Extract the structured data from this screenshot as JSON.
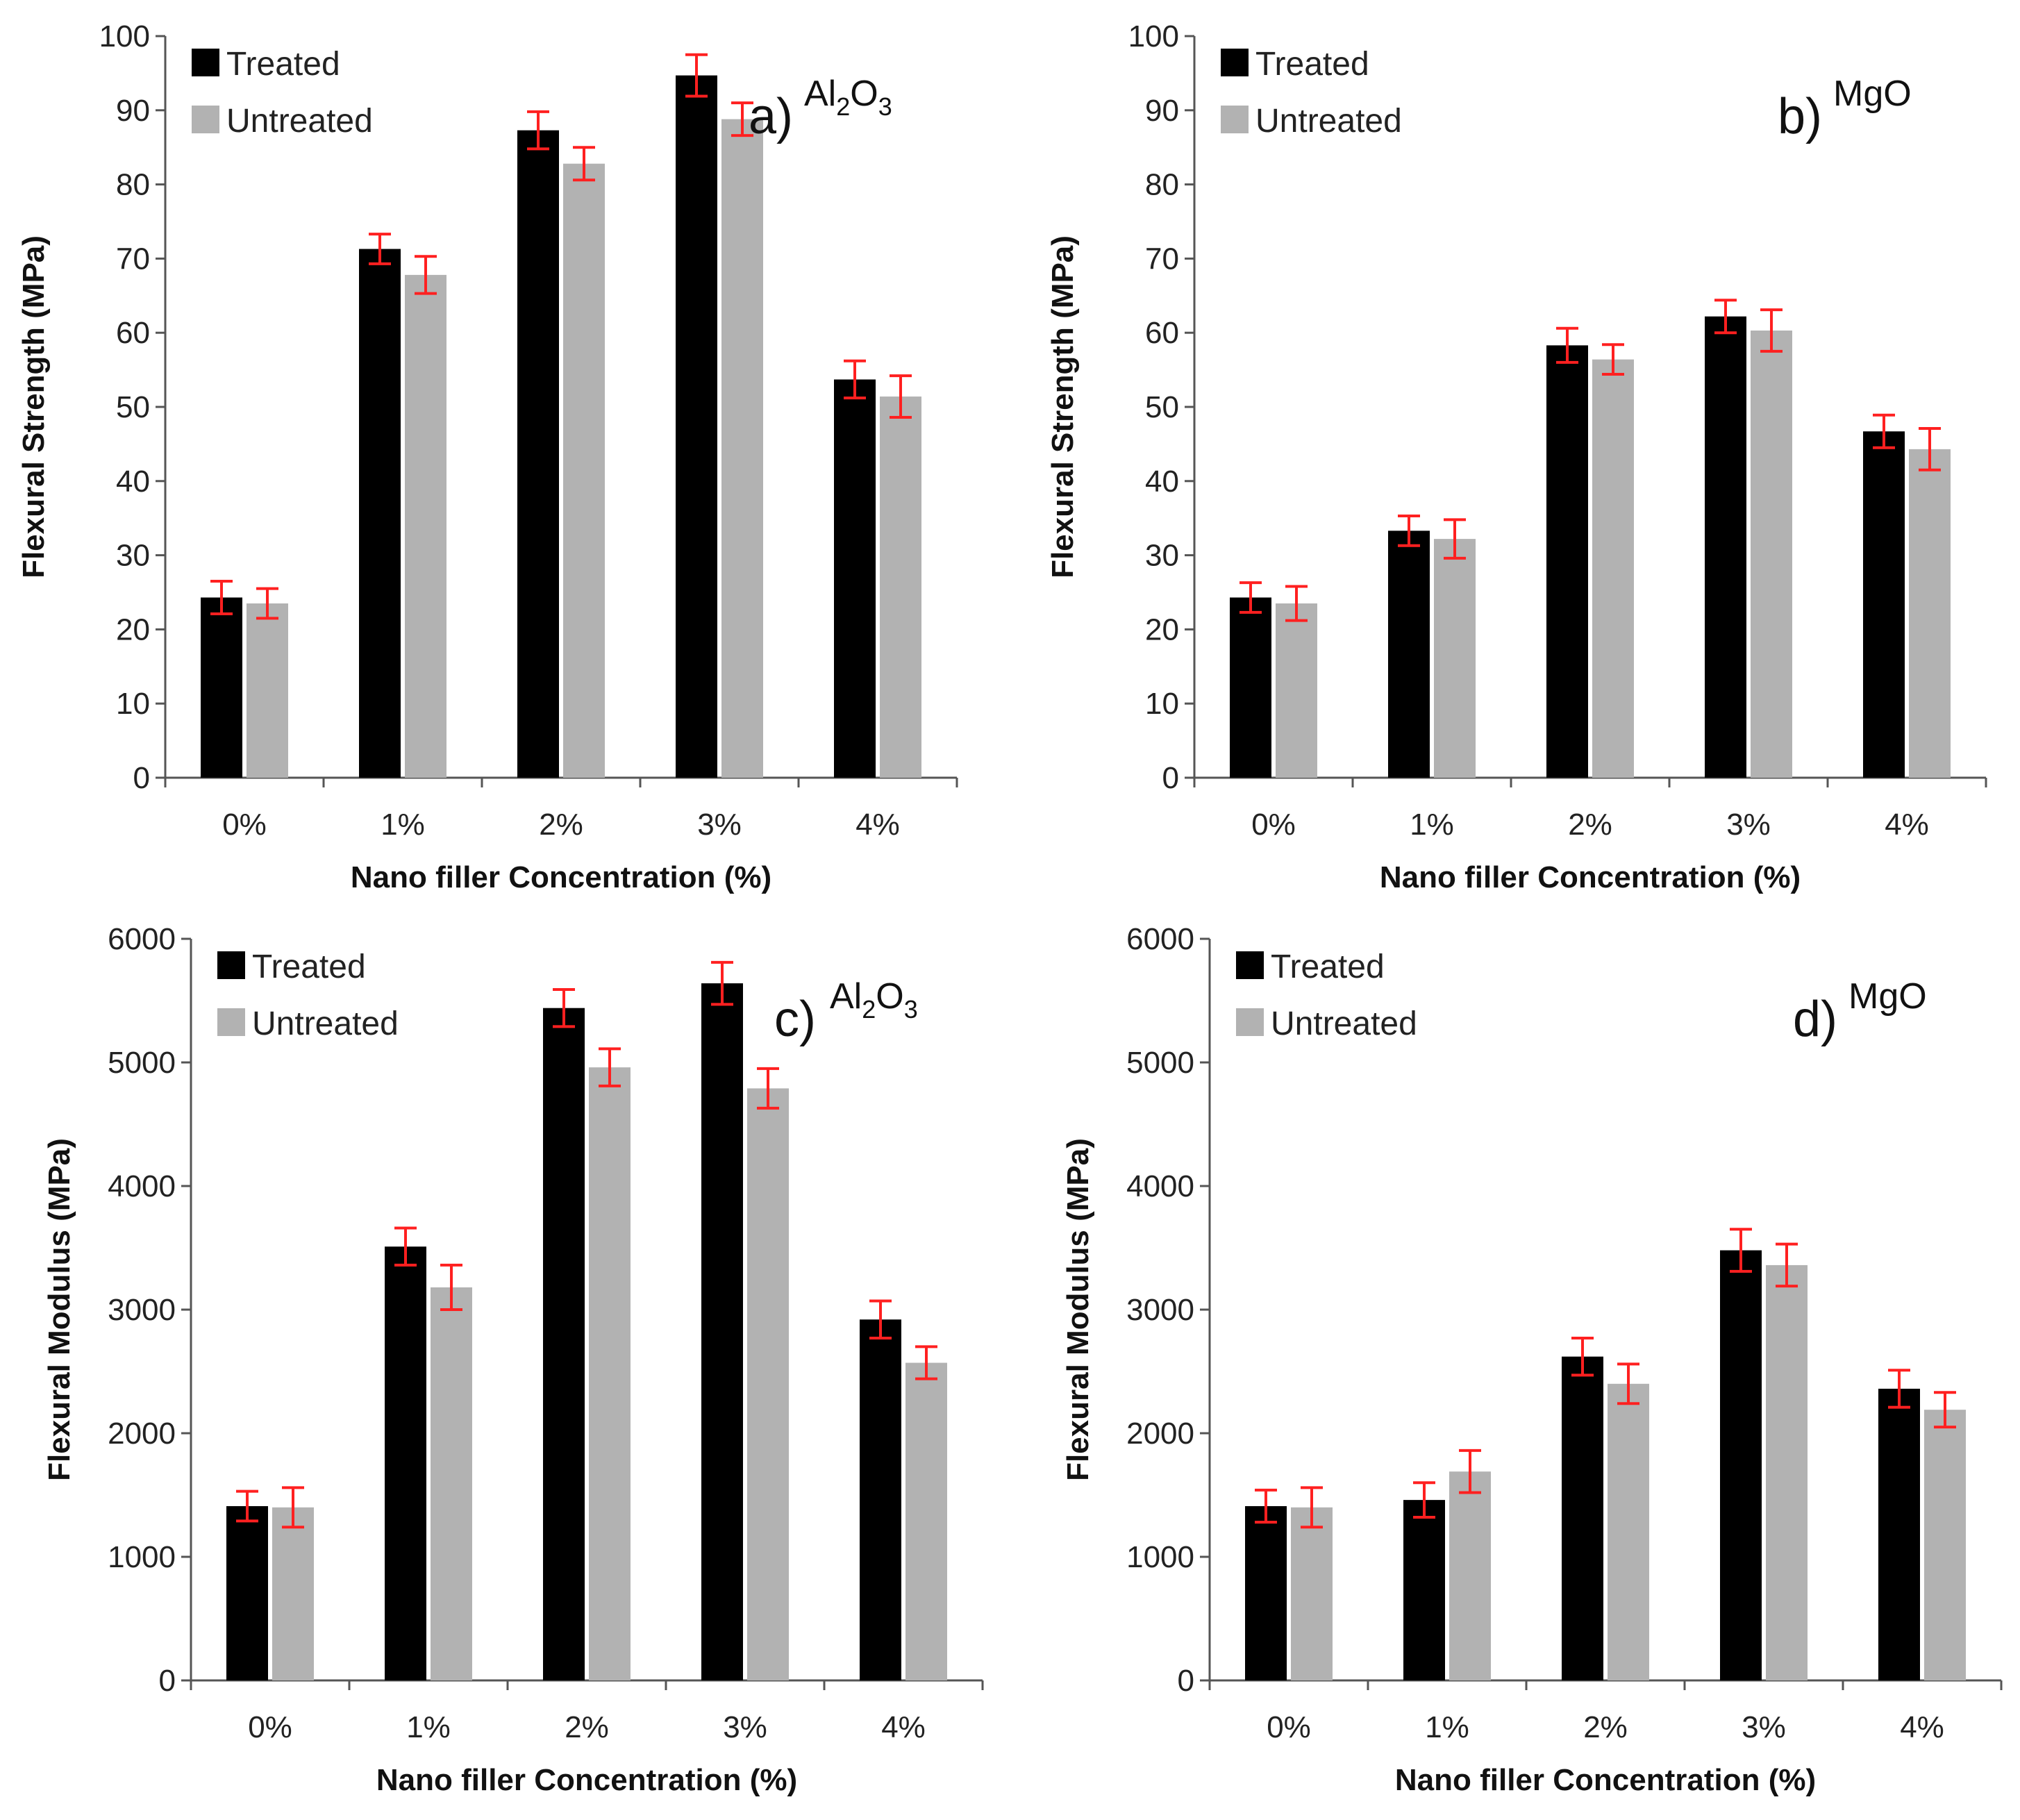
{
  "figure": {
    "colors": {
      "treated": "#000000",
      "untreated": "#b2b2b2",
      "error_bar": "#ff2020",
      "axis": "#555555"
    },
    "legend": {
      "treated": "Treated",
      "untreated": "Untreated"
    }
  },
  "chart_data": [
    {
      "type": "bar",
      "panel": "a",
      "panel_label": "a)",
      "material": {
        "base": "Al",
        "sub1": "2",
        "mid": "O",
        "sub2": "3"
      },
      "categories": [
        "0%",
        "1%",
        "2%",
        "3%",
        "4%"
      ],
      "series": [
        {
          "name": "Treated",
          "values": [
            24.3,
            71.3,
            87.3,
            94.7,
            53.7
          ],
          "errors": [
            2.2,
            2.0,
            2.5,
            2.8,
            2.5
          ]
        },
        {
          "name": "Untreated",
          "values": [
            23.5,
            67.8,
            82.8,
            88.8,
            51.4
          ],
          "errors": [
            2.0,
            2.5,
            2.2,
            2.2,
            2.8
          ]
        }
      ],
      "xlabel": "Nano filler Concentration (%)",
      "ylabel": "Flexural Strength (MPa)",
      "ylim": [
        0,
        100
      ],
      "yticks": [
        "0",
        "10",
        "20",
        "30",
        "40",
        "50",
        "60",
        "70",
        "80",
        "90",
        "100"
      ],
      "legend_position": "top-left"
    },
    {
      "type": "bar",
      "panel": "b",
      "panel_label": "b)",
      "material": {
        "base": "MgO",
        "sub1": "",
        "mid": "",
        "sub2": ""
      },
      "categories": [
        "0%",
        "1%",
        "2%",
        "3%",
        "4%"
      ],
      "series": [
        {
          "name": "Treated",
          "values": [
            24.3,
            33.3,
            58.3,
            62.2,
            46.7
          ],
          "errors": [
            2.0,
            2.0,
            2.3,
            2.2,
            2.2
          ]
        },
        {
          "name": "Untreated",
          "values": [
            23.5,
            32.2,
            56.4,
            60.3,
            44.3
          ],
          "errors": [
            2.3,
            2.6,
            2.0,
            2.8,
            2.8
          ]
        }
      ],
      "xlabel": "Nano filler Concentration (%)",
      "ylabel": "Flexural Strength (MPa)",
      "ylim": [
        0,
        100
      ],
      "yticks": [
        "0",
        "10",
        "20",
        "30",
        "40",
        "50",
        "60",
        "70",
        "80",
        "90",
        "100"
      ],
      "legend_position": "top-left"
    },
    {
      "type": "bar",
      "panel": "c",
      "panel_label": "c)",
      "material": {
        "base": "Al",
        "sub1": "2",
        "mid": "O",
        "sub2": "3"
      },
      "categories": [
        "0%",
        "1%",
        "2%",
        "3%",
        "4%"
      ],
      "series": [
        {
          "name": "Treated",
          "values": [
            1410,
            3510,
            5440,
            5640,
            2920
          ],
          "errors": [
            120,
            150,
            150,
            170,
            150
          ]
        },
        {
          "name": "Untreated",
          "values": [
            1400,
            3180,
            4960,
            4790,
            2570
          ],
          "errors": [
            160,
            180,
            150,
            160,
            130
          ]
        }
      ],
      "xlabel": "Nano filler Concentration (%)",
      "ylabel": "Flexural Modulus (MPa)",
      "ylim": [
        0,
        6000
      ],
      "yticks": [
        "0",
        "1000",
        "2000",
        "3000",
        "4000",
        "5000",
        "6000"
      ],
      "legend_position": "top-left"
    },
    {
      "type": "bar",
      "panel": "d",
      "panel_label": "d)",
      "material": {
        "base": "MgO",
        "sub1": "",
        "mid": "",
        "sub2": ""
      },
      "categories": [
        "0%",
        "1%",
        "2%",
        "3%",
        "4%"
      ],
      "series": [
        {
          "name": "Treated",
          "values": [
            1410,
            1460,
            2620,
            3480,
            2360
          ],
          "errors": [
            130,
            140,
            150,
            170,
            150
          ]
        },
        {
          "name": "Untreated",
          "values": [
            1400,
            1690,
            2400,
            3360,
            2190
          ],
          "errors": [
            160,
            170,
            160,
            170,
            140
          ]
        }
      ],
      "xlabel": "Nano filler Concentration (%)",
      "ylabel": "Flexural Modulus (MPa)",
      "ylim": [
        0,
        6000
      ],
      "yticks": [
        "0",
        "1000",
        "2000",
        "3000",
        "4000",
        "5000",
        "6000"
      ],
      "legend_position": "top-left"
    }
  ]
}
